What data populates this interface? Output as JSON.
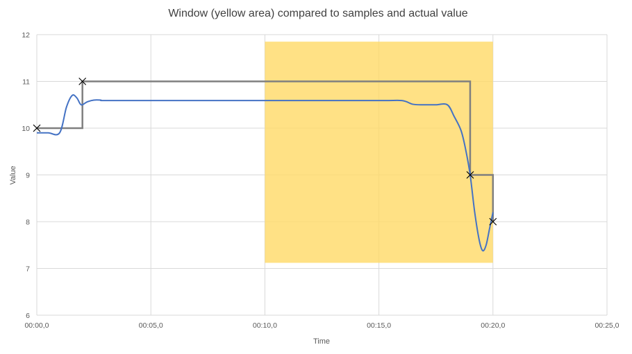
{
  "chart_data": {
    "type": "line",
    "title": "Window (yellow area) compared to samples and actual value",
    "xlabel": "Time",
    "ylabel": "Value",
    "x_tick_labels": [
      "00:00,0",
      "00:05,0",
      "00:10,0",
      "00:15,0",
      "00:20,0",
      "00:25,0"
    ],
    "x_ticks_seconds": [
      0,
      5,
      10,
      15,
      20,
      25
    ],
    "xlim_seconds": [
      0,
      25
    ],
    "y_ticks": [
      6,
      7,
      8,
      9,
      10,
      11,
      12
    ],
    "ylim": [
      6,
      12
    ],
    "grid": true,
    "legend": "none",
    "window": {
      "x_start": 10,
      "x_end": 20,
      "y_low": 7.12,
      "y_high": 11.85,
      "color": "#ffd966",
      "opacity": 0.8
    },
    "series": [
      {
        "kind": "actual",
        "color": "#4472c4",
        "x": [
          0,
          0.5,
          1.0,
          1.3,
          1.55,
          1.75,
          1.9,
          2.0,
          2.2,
          2.5,
          2.8,
          3.0,
          5,
          10,
          15,
          16.0,
          16.5,
          17.0,
          17.5,
          18.0,
          18.3,
          18.6,
          18.8,
          19.0,
          19.2,
          19.4,
          19.55,
          19.7,
          19.85,
          20.0
        ],
        "y": [
          9.9,
          9.9,
          9.9,
          10.45,
          10.7,
          10.65,
          10.52,
          10.5,
          10.56,
          10.6,
          10.6,
          10.59,
          10.59,
          10.59,
          10.59,
          10.59,
          10.51,
          10.5,
          10.5,
          10.5,
          10.25,
          9.95,
          9.55,
          9.0,
          8.2,
          7.6,
          7.38,
          7.5,
          7.85,
          8.2
        ]
      },
      {
        "kind": "samples",
        "color": "#7f7f7f",
        "marker": "x",
        "x": [
          0,
          2,
          19,
          20
        ],
        "y": [
          10,
          11,
          9,
          8
        ]
      }
    ]
  }
}
